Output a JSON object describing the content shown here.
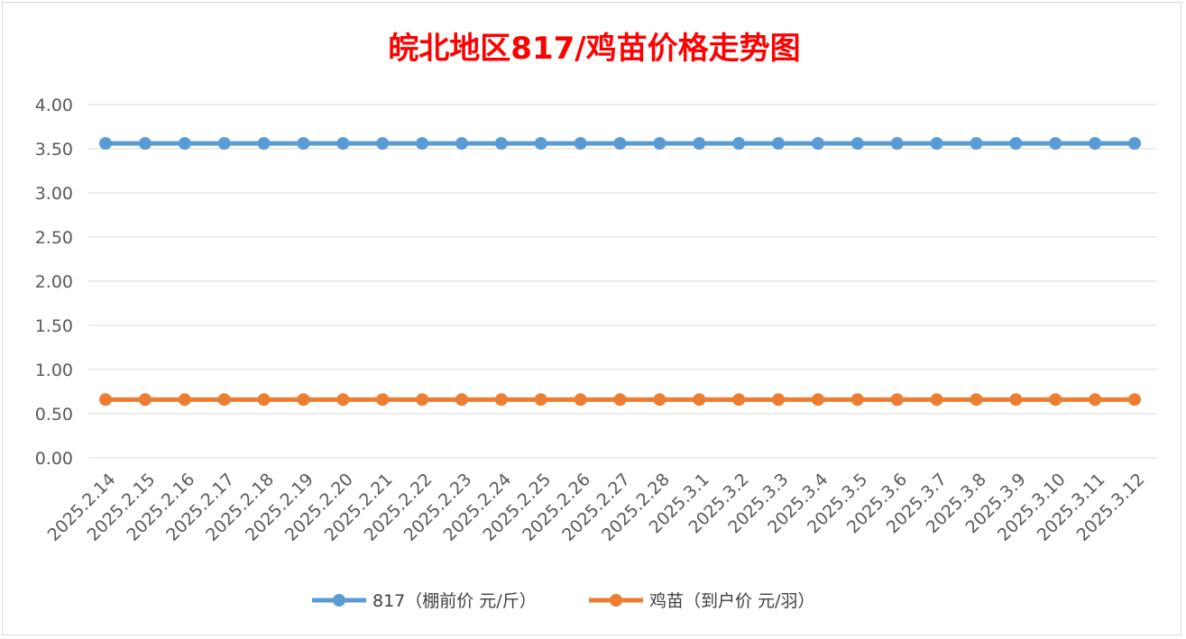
{
  "chart_data": {
    "type": "line",
    "title": "皖北地区817/鸡苗价格走势图",
    "xlabel": "",
    "ylabel": "",
    "ylim": [
      0,
      4
    ],
    "y_ticks": [
      "0.00",
      "0.50",
      "1.00",
      "1.50",
      "2.00",
      "2.50",
      "3.00",
      "3.50",
      "4.00"
    ],
    "grid": "horizontal",
    "legend_position": "bottom",
    "categories": [
      "2025.2.14",
      "2025.2.15",
      "2025.2.16",
      "2025.2.17",
      "2025.2.18",
      "2025.2.19",
      "2025.2.20",
      "2025.2.21",
      "2025.2.22",
      "2025.2.23",
      "2025.2.24",
      "2025.2.25",
      "2025.2.26",
      "2025.2.27",
      "2025.2.28",
      "2025.3.1",
      "2025.3.2",
      "2025.3.3",
      "2025.3.4",
      "2025.3.5",
      "2025.3.6",
      "2025.3.7",
      "2025.3.8",
      "2025.3.9",
      "2025.3.10",
      "2025.3.11",
      "2025.3.12"
    ],
    "series": [
      {
        "name": "817（棚前价 元/斤）",
        "color": "#5b9bd5",
        "values": [
          3.56,
          3.56,
          3.56,
          3.56,
          3.56,
          3.56,
          3.56,
          3.56,
          3.56,
          3.56,
          3.56,
          3.56,
          3.56,
          3.56,
          3.56,
          3.56,
          3.56,
          3.56,
          3.56,
          3.56,
          3.56,
          3.56,
          3.56,
          3.56,
          3.56,
          3.56,
          3.56
        ]
      },
      {
        "name": "鸡苗（到户价 元/羽）",
        "color": "#ed7d31",
        "values": [
          0.66,
          0.66,
          0.66,
          0.66,
          0.66,
          0.66,
          0.66,
          0.66,
          0.66,
          0.66,
          0.66,
          0.66,
          0.66,
          0.66,
          0.66,
          0.66,
          0.66,
          0.66,
          0.66,
          0.66,
          0.66,
          0.66,
          0.66,
          0.66,
          0.66,
          0.66,
          0.66
        ]
      }
    ]
  }
}
